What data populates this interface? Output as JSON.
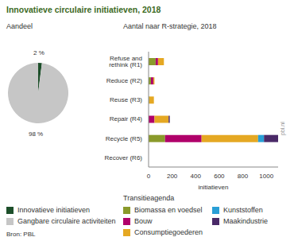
{
  "title": "Innovatieve circulaire initiatieven, 2018",
  "source": "Bron: PBL",
  "chart_data": [
    {
      "type": "pie",
      "subtitle": "Aandeel",
      "categories": [
        "Innovatieve initiatieven",
        "Gangbare circulaire activiteiten"
      ],
      "values": [
        2,
        98
      ],
      "value_labels": [
        "2 %",
        "98 %"
      ],
      "colors": [
        "#1d4f2a",
        "#c6c6c6"
      ],
      "data_labels": true,
      "legend": "bottom"
    },
    {
      "type": "bar",
      "subtitle": "Aantal naar R-strategie, 2018",
      "orientation": "horizontal",
      "stacked": true,
      "categories": [
        "Refuse and rethink (R1)",
        "Reduce (R2)",
        "Reuse (R3)",
        "Repair (R4)",
        "Recycle (R5)",
        "Recover (R6)"
      ],
      "series": [
        {
          "name": "Biomassa en voedsel",
          "color": "#8a9a2b",
          "values": [
            60,
            20,
            5,
            0,
            140,
            0
          ]
        },
        {
          "name": "Bouw",
          "color": "#b0006a",
          "values": [
            20,
            20,
            0,
            50,
            310,
            0
          ]
        },
        {
          "name": "Consumptiegoederen",
          "color": "#e5a823",
          "values": [
            50,
            10,
            40,
            120,
            480,
            0
          ]
        },
        {
          "name": "Kunststoffen",
          "color": "#2a9fd6",
          "values": [
            0,
            0,
            0,
            0,
            50,
            0
          ]
        },
        {
          "name": "Maakindustrie",
          "color": "#4a2a68",
          "values": [
            0,
            0,
            0,
            10,
            120,
            0
          ]
        }
      ],
      "xlim": [
        0,
        1100
      ],
      "xticks": [
        0,
        200,
        400,
        600,
        800,
        1000
      ],
      "x_label": "initiatieven",
      "legend_title": "Transitieagenda",
      "legend": "bottom",
      "grid": false,
      "annotations": [
        "pbl.nl"
      ]
    }
  ]
}
